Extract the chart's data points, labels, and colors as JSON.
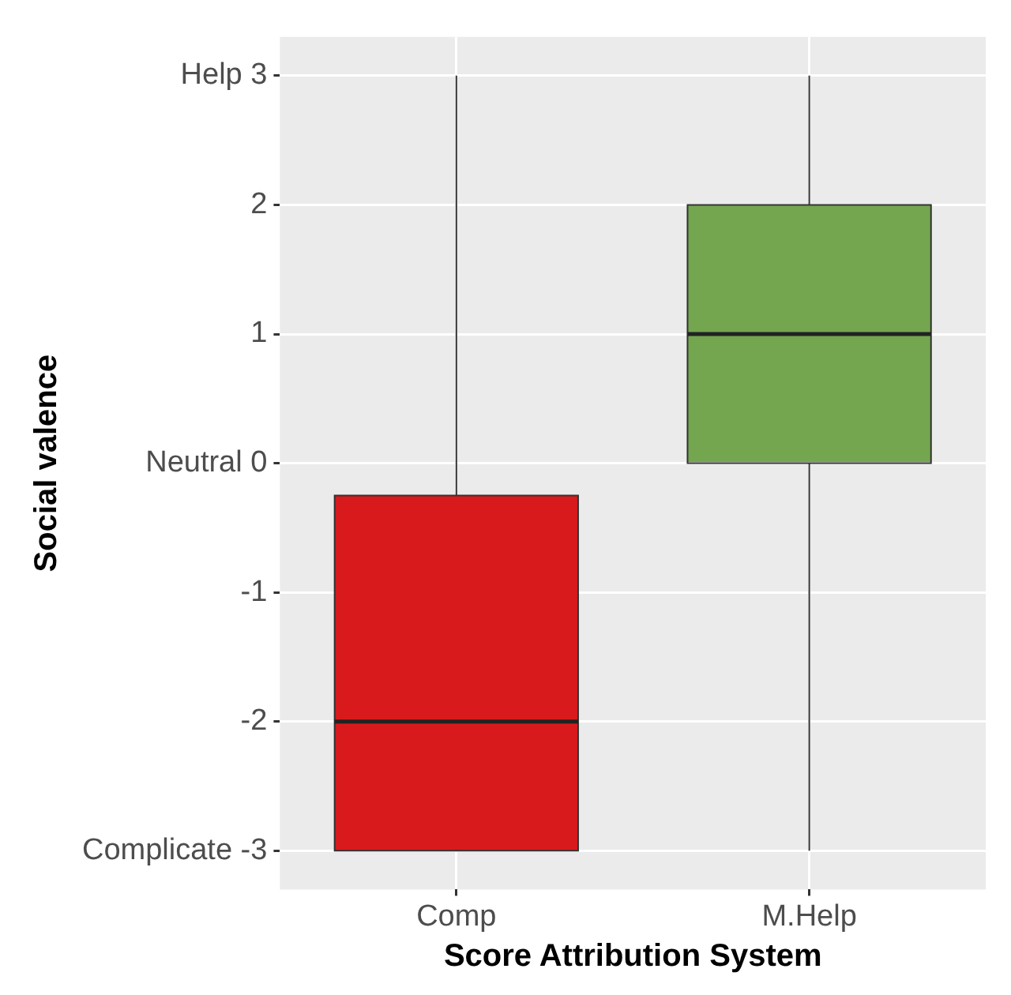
{
  "chart_data": {
    "type": "box",
    "xlabel": "Score Attribution System",
    "ylabel": "Social valence",
    "categories": [
      "Comp",
      "M.Help"
    ],
    "boxes": [
      {
        "low": -3,
        "q1": -3,
        "median": -2,
        "q3": -0.25,
        "high": 3
      },
      {
        "low": -3,
        "q1": 0,
        "median": 1,
        "q3": 2,
        "high": 3
      }
    ],
    "colors": [
      "#d91a1c",
      "#74a650"
    ],
    "ylim": [
      -3.3,
      3.3
    ],
    "yticks": [
      {
        "value": -3,
        "label": "Complicate -3"
      },
      -2,
      -1,
      {
        "value": 0,
        "label": "Neutral 0"
      },
      1,
      2,
      {
        "value": 3,
        "label": "Help 3"
      }
    ],
    "grid": true
  }
}
